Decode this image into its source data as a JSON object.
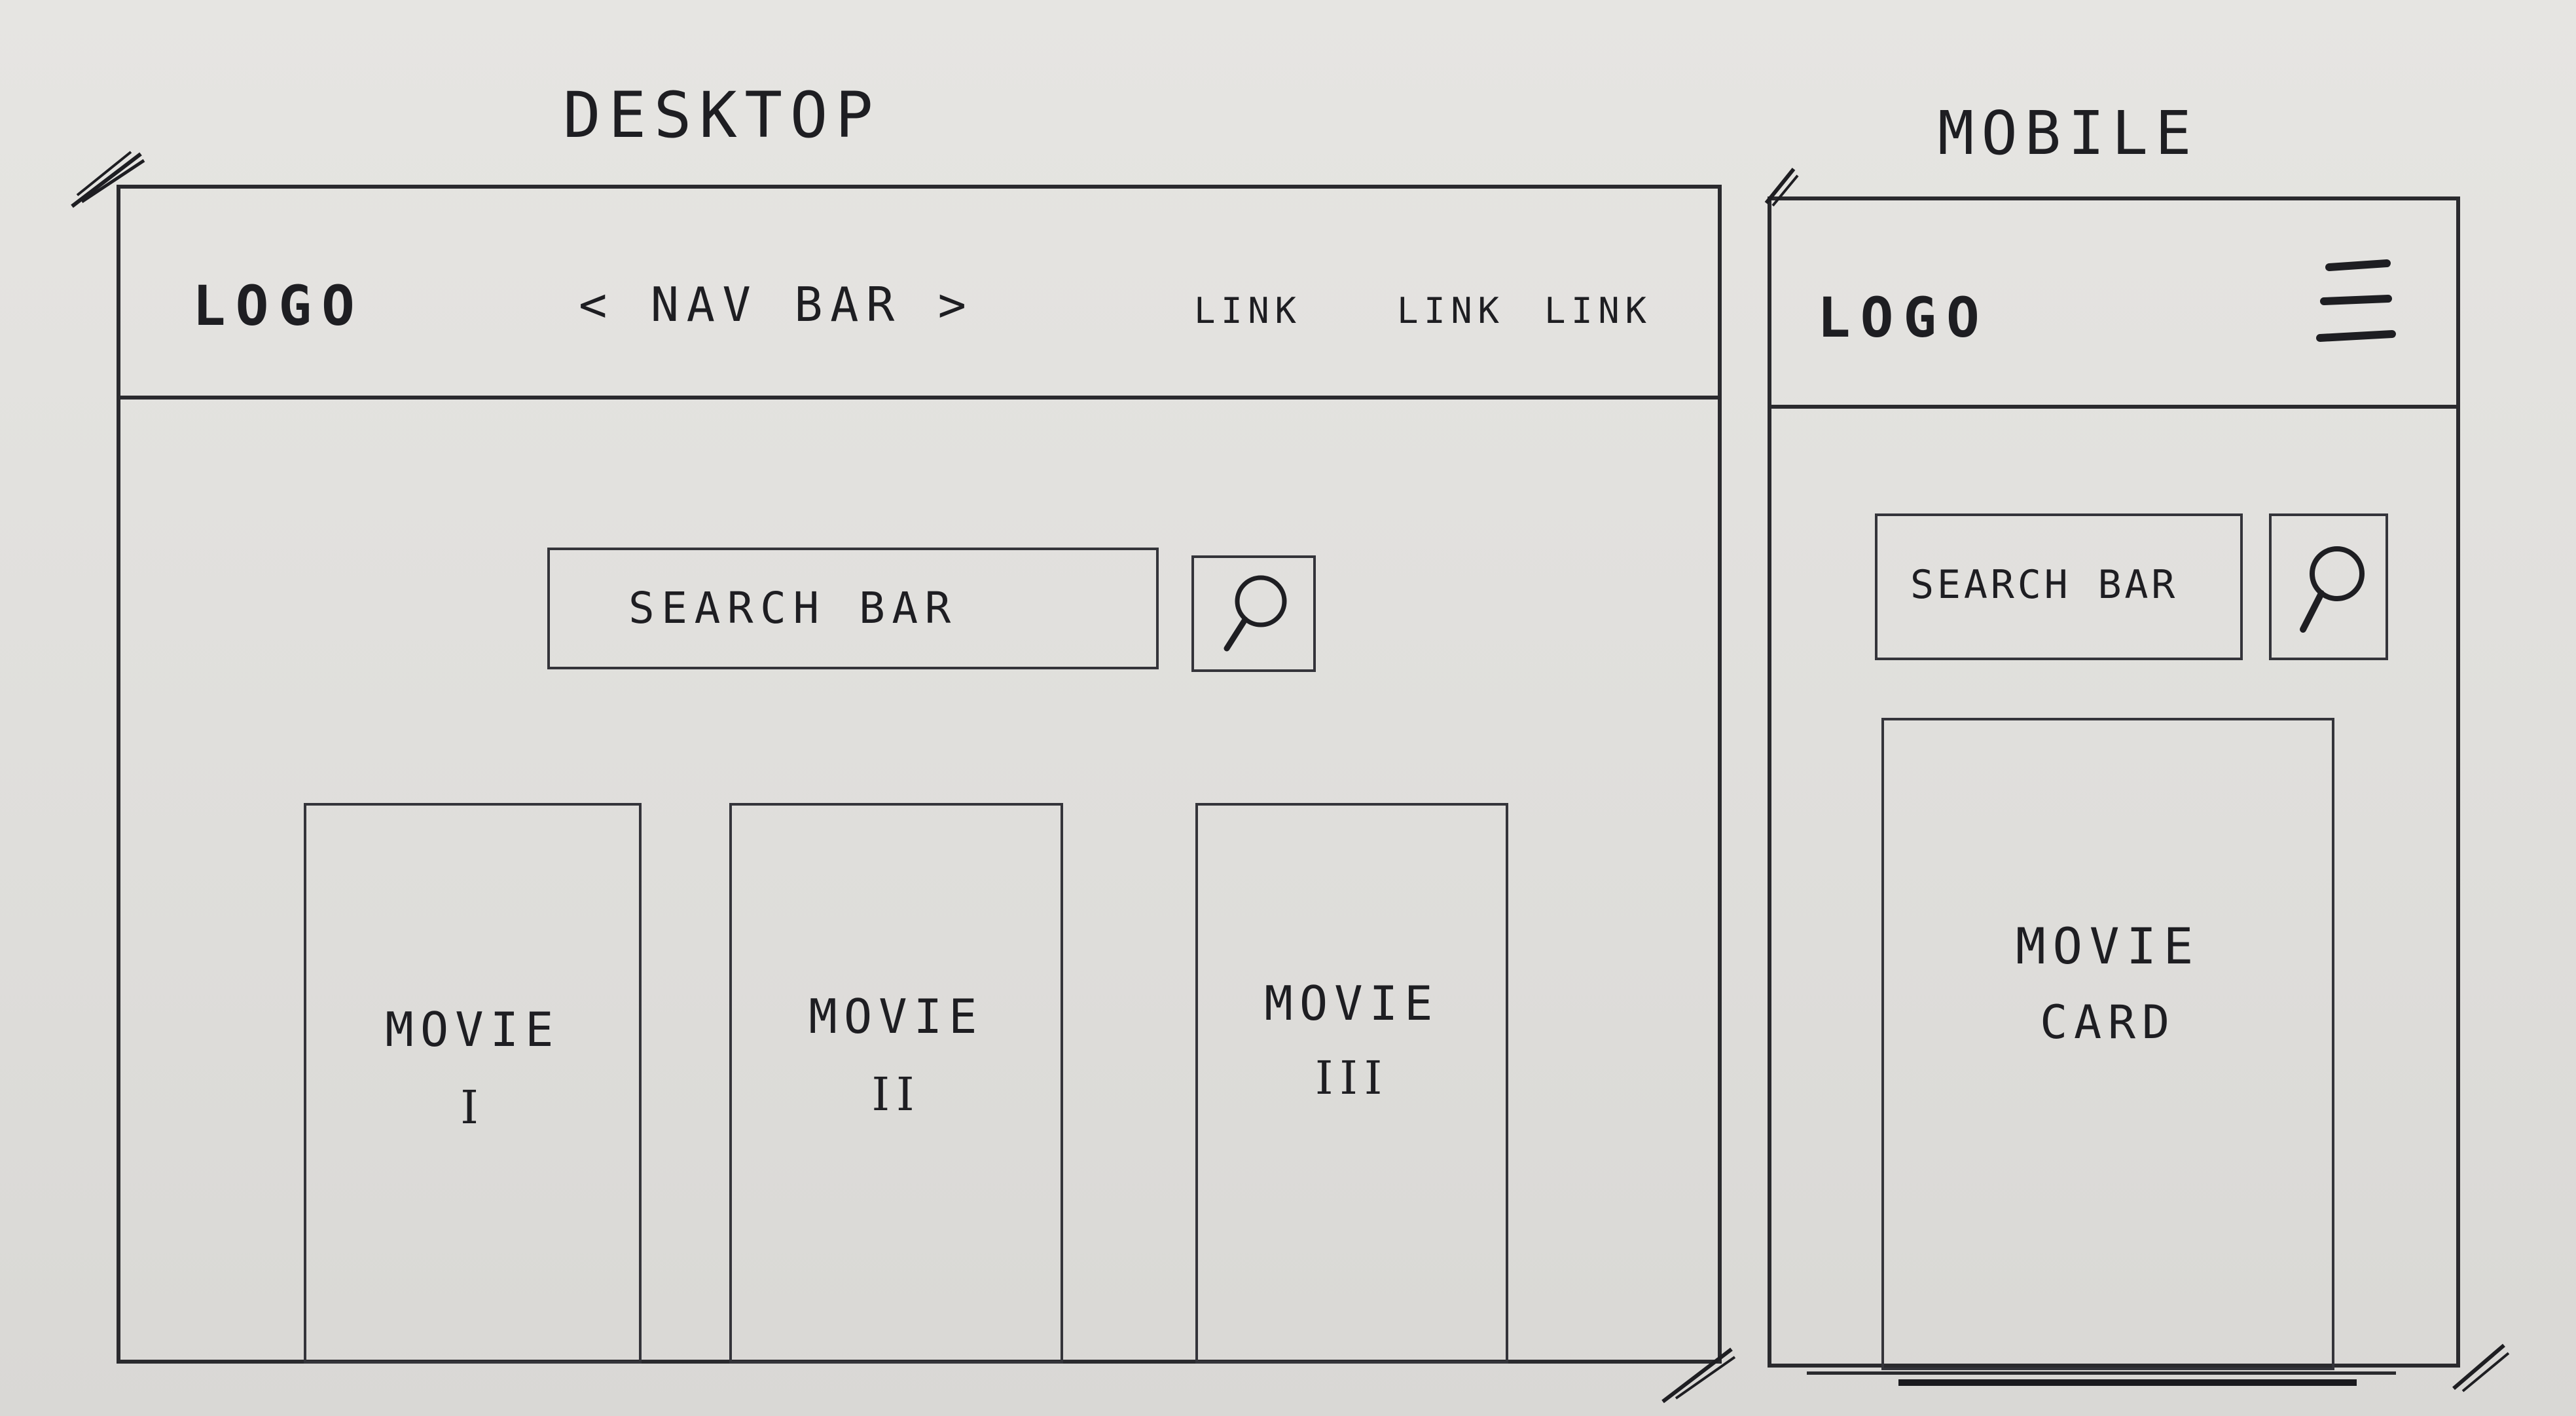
{
  "desktop": {
    "title": "DESKTOP",
    "logo": "LOGO",
    "nav_bar": "< NAV BAR >",
    "links": [
      "LINK",
      "LINK",
      "LINK"
    ],
    "search": {
      "label": "SEARCH BAR",
      "button_icon": "search-icon"
    },
    "movies": [
      {
        "title": "MOVIE",
        "numeral": "I"
      },
      {
        "title": "MOVIE",
        "numeral": "II"
      },
      {
        "title": "MOVIE",
        "numeral": "III"
      }
    ]
  },
  "mobile": {
    "title": "MOBILE",
    "logo": "LOGO",
    "menu_icon": "hamburger-menu-icon",
    "search": {
      "label": "SEARCH BAR",
      "button_icon": "search-icon"
    },
    "card": {
      "line1": "MOVIE",
      "line2": "CARD"
    }
  }
}
